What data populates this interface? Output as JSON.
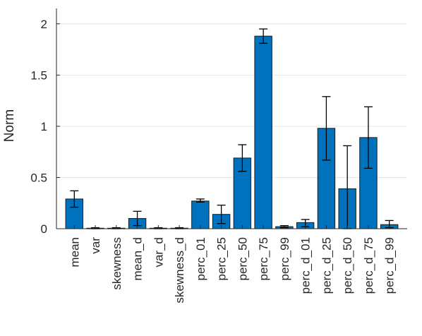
{
  "chart_data": {
    "type": "bar",
    "title": "",
    "xlabel": "",
    "ylabel": "Norm",
    "ylim": [
      0,
      2.15
    ],
    "yticks": [
      0,
      0.5,
      1,
      1.5,
      2
    ],
    "ytick_labels": [
      "0",
      "0.5",
      "1",
      "1.5",
      "2"
    ],
    "grid": "horizontal",
    "bar_color": "#0072BD",
    "categories": [
      "mean",
      "var",
      "skewness",
      "mean_d",
      "var_d",
      "skewness_d",
      "perc_01",
      "perc_25",
      "perc_50",
      "perc_75",
      "perc_99",
      "perc_d_01",
      "perc_d_25",
      "perc_d_50",
      "perc_d_75",
      "perc_d_99"
    ],
    "values": [
      0.29,
      0.005,
      0.005,
      0.1,
      0.005,
      0.005,
      0.27,
      0.14,
      0.69,
      1.88,
      0.02,
      0.06,
      0.98,
      0.39,
      0.89,
      0.04
    ],
    "error_low": [
      0.21,
      0.0,
      0.0,
      0.03,
      0.0,
      0.0,
      0.26,
      0.05,
      0.56,
      1.81,
      0.01,
      0.02,
      0.67,
      0.0,
      0.59,
      0.01
    ],
    "error_high": [
      0.37,
      0.01,
      0.01,
      0.17,
      0.01,
      0.01,
      0.29,
      0.23,
      0.82,
      1.95,
      0.03,
      0.09,
      1.29,
      0.81,
      1.19,
      0.08
    ]
  }
}
